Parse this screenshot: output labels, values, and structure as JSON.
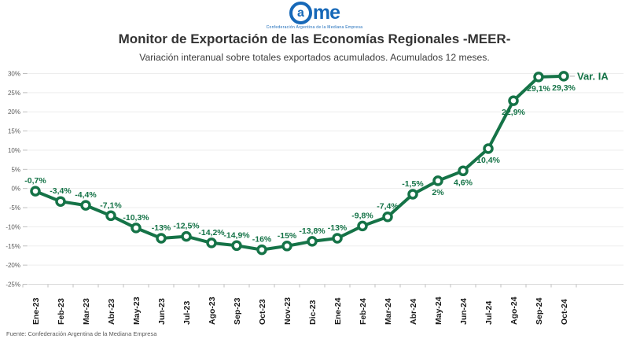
{
  "header": {
    "logo": {
      "circle_letter": "a",
      "rest": "me",
      "tagline": "Confederación Argentina de la Mediana Empresa"
    },
    "title": "Monitor de Exportación de las Economías Regionales -MEER-",
    "subtitle": "Variación interanual sobre totales exportados acumulados. Acumulados 12 meses."
  },
  "chart_data": {
    "type": "line",
    "title": "Monitor de Exportación de las Economías Regionales -MEER-",
    "subtitle": "Variación interanual sobre totales exportados acumulados. Acumulados 12 meses.",
    "categories": [
      "Ene-23",
      "Feb-23",
      "Mar-23",
      "Abr-23",
      "May-23",
      "Jun-23",
      "Jul-23",
      "Ago-23",
      "Sep-23",
      "Oct-23",
      "Nov-23",
      "Dic-23",
      "Ene-24",
      "Feb-24",
      "Mar-24",
      "Abr-24",
      "May-24",
      "Jun-24",
      "Jul-24",
      "Ago-24",
      "Sep-24",
      "Oct-24"
    ],
    "series": [
      {
        "name": "Var. IA",
        "values": [
          -0.7,
          -3.4,
          -4.4,
          -7.1,
          -10.3,
          -13,
          -12.5,
          -14.2,
          -14.9,
          -16,
          -15,
          -13.8,
          -13,
          -9.8,
          -7.4,
          -1.5,
          2,
          4.6,
          10.4,
          22.9,
          29.1,
          29.3
        ]
      }
    ],
    "point_labels": [
      "-0,7%",
      "-3,4%",
      "-4,4%",
      "-7,1%",
      "-10,3%",
      "-13%",
      "-12,5%",
      "-14,2%",
      "-14,9%",
      "-16%",
      "-15%",
      "-13,8%",
      "-13%",
      "-9,8%",
      "-7,4%",
      "-1,5%",
      "2%",
      "4,6%",
      "10,4%",
      "22,9%",
      "29,1%",
      "29,3%"
    ],
    "label_side": [
      "above",
      "above",
      "above",
      "above",
      "above",
      "above",
      "above",
      "above",
      "above",
      "above",
      "above",
      "above",
      "above",
      "above",
      "above",
      "above",
      "below",
      "below",
      "below",
      "below",
      "below",
      "below"
    ],
    "xlabel": "",
    "ylabel": "",
    "ylim": [
      -25,
      30
    ],
    "y_ticks": [
      "30%",
      "25%",
      "20%",
      "15%",
      "10%",
      "5%",
      "0%",
      "-5%",
      "-10%",
      "-15%",
      "-20%",
      "-25%"
    ],
    "y_tick_values": [
      30,
      25,
      20,
      15,
      10,
      5,
      0,
      -5,
      -10,
      -15,
      -20,
      -25
    ],
    "grid": true,
    "legend_position": "end-of-line",
    "marker": "hollow-circle"
  },
  "footer": {
    "source": "Fuente: Confederación Argentina de la Mediana Empresa"
  },
  "colors": {
    "accent_green": "#157347",
    "logo_blue": "#1668b8",
    "axis_text": "#595959",
    "x_label_text": "#1a1a1a",
    "grid": "#ededed",
    "axis_line": "#d8d8d8",
    "tick": "#bfbfbf",
    "leader": "#bbbbbb"
  }
}
